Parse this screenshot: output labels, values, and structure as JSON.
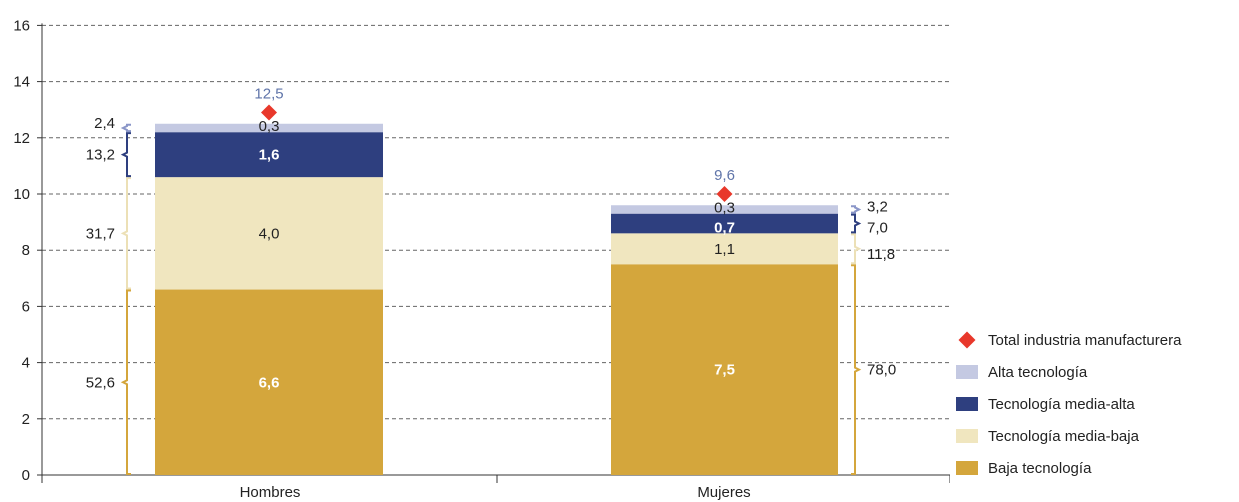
{
  "chart_data": {
    "type": "bar",
    "stacked": true,
    "categories": [
      "Hombres",
      "Mujeres"
    ],
    "ylim": [
      0,
      16
    ],
    "yticks": [
      "0",
      "2",
      "4",
      "6",
      "8",
      "10",
      "12",
      "14",
      "16"
    ],
    "grid": true,
    "legend_position": "bottom-right",
    "series": [
      {
        "name": "Baja tecnología",
        "key": "baja",
        "values": [
          6.6,
          7.5
        ],
        "labels": [
          "6,6",
          "7,5"
        ],
        "color": "#d4a63c"
      },
      {
        "name": "Tecnología media-baja",
        "key": "media_baja",
        "values": [
          4.0,
          1.1
        ],
        "labels": [
          "4,0",
          "1,1"
        ],
        "color": "#f0e6bf"
      },
      {
        "name": "Tecnología media-alta",
        "key": "media_alta",
        "values": [
          1.6,
          0.7
        ],
        "labels": [
          "1,6",
          "0,7"
        ],
        "color": "#2e3f7f"
      },
      {
        "name": "Alta tecnología",
        "key": "alta",
        "values": [
          0.3,
          0.3
        ],
        "labels": [
          "0,3",
          "0,3"
        ],
        "color": "#c4c9e2"
      }
    ],
    "total": {
      "name": "Total industria manufacturera",
      "values": [
        12.9,
        10.0
      ],
      "labels": [
        "12,5",
        "9,6"
      ],
      "color": "#e8382b"
    },
    "shares": [
      {
        "category": "Hombres",
        "side": "left",
        "items": [
          {
            "series": "baja",
            "label": "52,6"
          },
          {
            "series": "media_baja",
            "label": "31,7"
          },
          {
            "series": "media_alta",
            "label": "13,2"
          },
          {
            "series": "alta",
            "label": "2,4"
          }
        ]
      },
      {
        "category": "Mujeres",
        "side": "right",
        "items": [
          {
            "series": "baja",
            "label": "78,0"
          },
          {
            "series": "media_baja",
            "label": "11,8"
          },
          {
            "series": "media_alta",
            "label": "7,0"
          },
          {
            "series": "alta",
            "label": "3,2"
          }
        ]
      }
    ]
  },
  "legend": [
    {
      "label": "Total industria manufacturera",
      "type": "diamond",
      "color": "#e8382b"
    },
    {
      "label": "Alta tecnología",
      "type": "box",
      "color": "#c4c9e2"
    },
    {
      "label": "Tecnología media-alta",
      "type": "box",
      "color": "#2e3f7f"
    },
    {
      "label": "Tecnología media-baja",
      "type": "box",
      "color": "#f0e6bf"
    },
    {
      "label": "Baja tecnología",
      "type": "box",
      "color": "#d4a63c"
    }
  ]
}
